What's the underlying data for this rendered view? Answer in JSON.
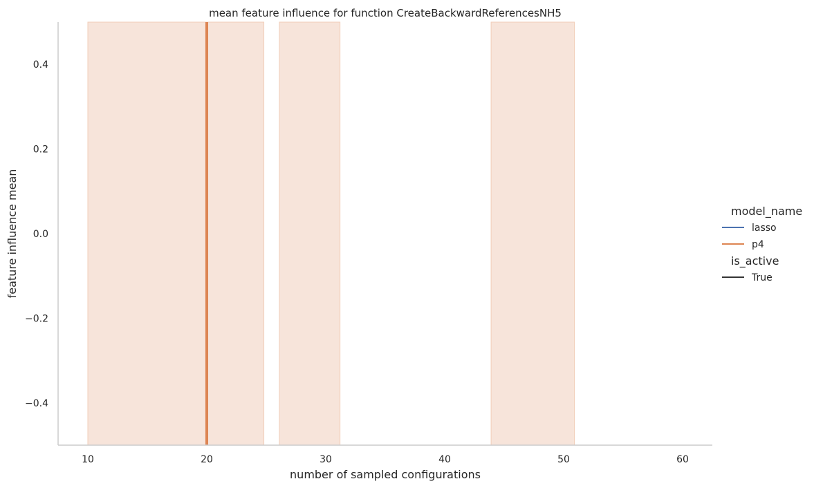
{
  "chart_data": {
    "type": "line",
    "title": "mean feature influence for function CreateBackwardReferencesNH5",
    "xlabel": "number of sampled configurations",
    "ylabel": "feature influence mean",
    "xlim": [
      7.5,
      62.5
    ],
    "ylim": [
      -0.5,
      0.5
    ],
    "xticks": [
      10,
      20,
      30,
      40,
      50,
      60
    ],
    "yticks": [
      -0.4,
      -0.2,
      0.0,
      0.2,
      0.4
    ],
    "xtick_labels": [
      "10",
      "20",
      "30",
      "40",
      "50",
      "60"
    ],
    "ytick_labels": [
      "−0.4",
      "−0.2",
      "0.0",
      "0.2",
      "0.4"
    ],
    "grid": false,
    "legend_placement": "right",
    "legend": {
      "hue_title": "model_name",
      "style_title": "is_active",
      "entries": [
        {
          "label": "lasso",
          "color": "#4c72b0",
          "group": "hue"
        },
        {
          "label": "p4",
          "color": "#dd8452",
          "group": "hue"
        },
        {
          "label": "True",
          "color": "#333333",
          "group": "style"
        }
      ]
    },
    "series": [
      {
        "name": "p4",
        "color": "#dd8452",
        "line_x": [
          20,
          20
        ],
        "line_y": [
          -0.5,
          0.5
        ],
        "ci_bands": [
          [
            10,
            24.8
          ],
          [
            26.1,
            31.2
          ],
          [
            43.9,
            50.9
          ]
        ],
        "ci_color": "#f7e4da"
      }
    ]
  }
}
